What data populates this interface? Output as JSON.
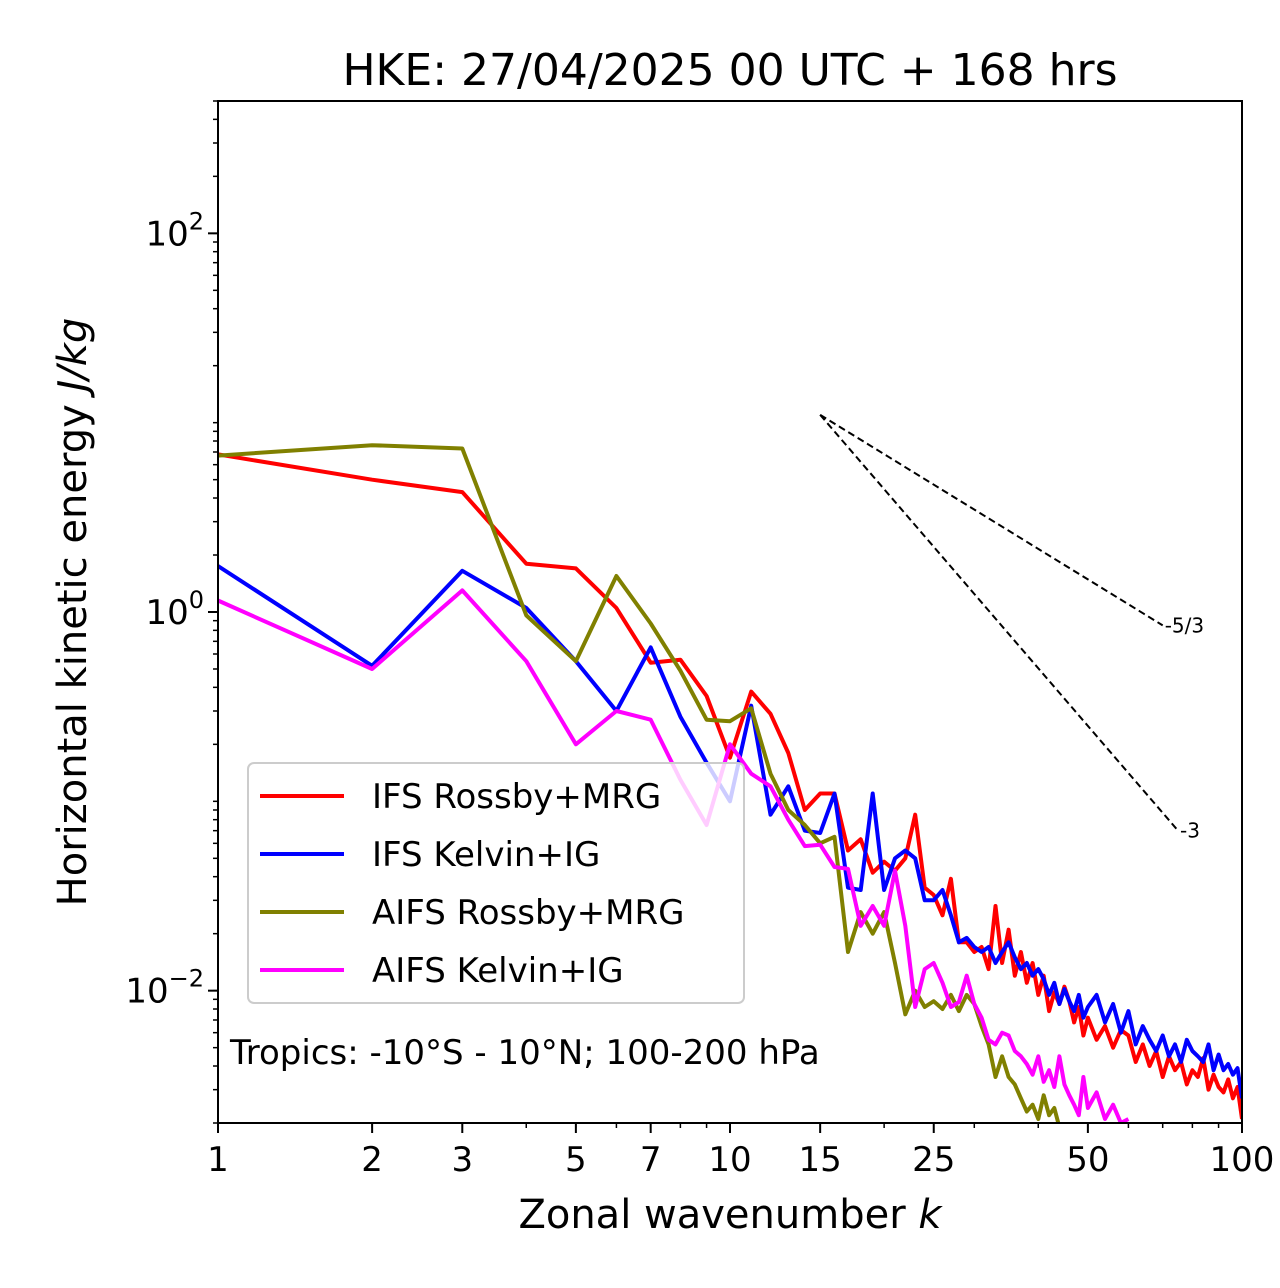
{
  "chart_data": {
    "type": "line",
    "title": "HKE: 27/04/2025 00 UTC + 168 hrs",
    "xlabel": "Zonal wavenumber",
    "xlabel_var": "k",
    "ylabel": "Horizontal kinetic energy",
    "ylabel_unit": "J/kg",
    "xscale": "log",
    "yscale": "log",
    "xlim": [
      1,
      100
    ],
    "ylim": [
      0.002,
      500
    ],
    "x_ticks": [
      1,
      2,
      3,
      5,
      7,
      10,
      15,
      25,
      50,
      100
    ],
    "x_tick_labels": [
      "1",
      "2",
      "3",
      "5",
      "7",
      "10",
      "15",
      "25",
      "50",
      "100"
    ],
    "y_ticks": [
      0.01,
      1,
      100
    ],
    "y_tick_labels": [
      {
        "base": "10",
        "exp": "−2"
      },
      {
        "base": "10",
        "exp": "0"
      },
      {
        "base": "10",
        "exp": "2"
      }
    ],
    "legend_position": "lower-left",
    "annotation": "Tropics: -10°S - 10°N; 100-200 hPa",
    "reference_lines": [
      {
        "label": "-5/3",
        "x": [
          15,
          70
        ],
        "y": [
          11,
          0.85
        ]
      },
      {
        "label": "-3",
        "x": [
          15,
          75
        ],
        "y": [
          11,
          0.07
        ]
      }
    ],
    "series": [
      {
        "name": "IFS Rossby+MRG",
        "color": "#ff0000",
        "x": [
          1,
          2,
          3,
          4,
          5,
          6,
          7,
          8,
          9,
          10,
          11,
          12,
          13,
          14,
          15,
          16,
          17,
          18,
          19,
          20,
          21,
          22,
          23,
          24,
          25,
          26,
          27,
          28,
          29,
          30,
          31,
          32,
          33,
          34,
          35,
          36,
          37,
          38,
          39,
          40,
          41,
          42,
          43,
          44,
          45,
          46,
          47,
          48,
          49,
          50,
          52,
          54,
          56,
          58,
          60,
          62,
          64,
          66,
          68,
          70,
          72,
          74,
          76,
          78,
          80,
          82,
          84,
          86,
          88,
          90,
          92,
          94,
          96,
          98,
          100
        ],
        "y": [
          6.8,
          5.0,
          4.3,
          1.8,
          1.7,
          1.05,
          0.54,
          0.56,
          0.36,
          0.17,
          0.38,
          0.29,
          0.18,
          0.09,
          0.11,
          0.11,
          0.055,
          0.063,
          0.042,
          0.048,
          0.043,
          0.05,
          0.085,
          0.035,
          0.032,
          0.025,
          0.039,
          0.018,
          0.018,
          0.016,
          0.017,
          0.013,
          0.028,
          0.014,
          0.021,
          0.012,
          0.016,
          0.011,
          0.014,
          0.0095,
          0.012,
          0.0078,
          0.0098,
          0.0085,
          0.0105,
          0.0088,
          0.0068,
          0.0082,
          0.0058,
          0.0072,
          0.0055,
          0.0065,
          0.005,
          0.0062,
          0.0058,
          0.0042,
          0.0052,
          0.004,
          0.0048,
          0.0035,
          0.0045,
          0.0038,
          0.0042,
          0.0032,
          0.0038,
          0.0035,
          0.0044,
          0.003,
          0.0036,
          0.0031,
          0.0029,
          0.0034,
          0.0027,
          0.0031,
          0.0021
        ]
      },
      {
        "name": "IFS Kelvin+IG",
        "color": "#0000ff",
        "x": [
          1,
          2,
          3,
          4,
          5,
          6,
          7,
          8,
          9,
          10,
          11,
          12,
          13,
          14,
          15,
          16,
          17,
          18,
          19,
          20,
          21,
          22,
          23,
          24,
          25,
          26,
          27,
          28,
          29,
          30,
          31,
          32,
          33,
          34,
          35,
          36,
          37,
          38,
          39,
          40,
          41,
          42,
          43,
          44,
          45,
          46,
          47,
          48,
          49,
          50,
          52,
          54,
          56,
          58,
          60,
          62,
          64,
          66,
          68,
          70,
          72,
          74,
          76,
          78,
          80,
          82,
          84,
          86,
          88,
          90,
          92,
          94,
          96,
          98,
          100
        ],
        "y": [
          1.75,
          0.52,
          1.65,
          1.05,
          0.55,
          0.3,
          0.65,
          0.28,
          0.16,
          0.1,
          0.32,
          0.085,
          0.12,
          0.07,
          0.068,
          0.11,
          0.035,
          0.034,
          0.11,
          0.034,
          0.05,
          0.055,
          0.05,
          0.03,
          0.03,
          0.034,
          0.025,
          0.018,
          0.019,
          0.017,
          0.016,
          0.017,
          0.014,
          0.016,
          0.018,
          0.015,
          0.013,
          0.014,
          0.012,
          0.013,
          0.0115,
          0.0095,
          0.011,
          0.0085,
          0.0102,
          0.0088,
          0.0078,
          0.0095,
          0.0072,
          0.0082,
          0.0095,
          0.0068,
          0.0085,
          0.006,
          0.0078,
          0.0052,
          0.0065,
          0.0055,
          0.0048,
          0.0058,
          0.0045,
          0.0052,
          0.0042,
          0.0055,
          0.0048,
          0.0045,
          0.0042,
          0.0052,
          0.0038,
          0.0046,
          0.0038,
          0.0041,
          0.0036,
          0.0039,
          0.0027
        ]
      },
      {
        "name": "AIFS Rossby+MRG",
        "color": "#808000",
        "x": [
          1,
          2,
          3,
          4,
          5,
          6,
          7,
          8,
          9,
          10,
          11,
          12,
          13,
          14,
          15,
          16,
          17,
          18,
          19,
          20,
          21,
          22,
          23,
          24,
          25,
          26,
          27,
          28,
          29,
          30,
          31,
          32,
          33,
          34,
          35,
          36,
          37,
          38,
          39,
          40,
          41,
          42,
          43,
          44
        ],
        "y": [
          6.7,
          7.6,
          7.3,
          0.96,
          0.55,
          1.55,
          0.87,
          0.49,
          0.27,
          0.265,
          0.31,
          0.14,
          0.09,
          0.075,
          0.06,
          0.065,
          0.016,
          0.026,
          0.02,
          0.026,
          0.014,
          0.0075,
          0.01,
          0.0082,
          0.0088,
          0.008,
          0.0095,
          0.0078,
          0.0095,
          0.0085,
          0.0065,
          0.0052,
          0.0035,
          0.0045,
          0.0035,
          0.0032,
          0.0027,
          0.0023,
          0.0025,
          0.0021,
          0.0028,
          0.0022,
          0.0024,
          0.0019
        ]
      },
      {
        "name": "AIFS Kelvin+IG",
        "color": "#ff00ff",
        "x": [
          1,
          2,
          3,
          4,
          5,
          6,
          7,
          8,
          9,
          10,
          11,
          12,
          13,
          14,
          15,
          16,
          17,
          18,
          19,
          20,
          21,
          22,
          23,
          24,
          25,
          26,
          27,
          28,
          29,
          30,
          31,
          32,
          33,
          34,
          35,
          36,
          37,
          38,
          39,
          40,
          41,
          42,
          43,
          44,
          45,
          46,
          47,
          48,
          49,
          50,
          52,
          54,
          56,
          58,
          60
        ],
        "y": [
          1.15,
          0.5,
          1.3,
          0.55,
          0.2,
          0.3,
          0.27,
          0.13,
          0.075,
          0.2,
          0.14,
          0.12,
          0.08,
          0.058,
          0.059,
          0.045,
          0.044,
          0.022,
          0.028,
          0.022,
          0.043,
          0.022,
          0.0082,
          0.013,
          0.014,
          0.011,
          0.0082,
          0.0087,
          0.012,
          0.0085,
          0.0072,
          0.0055,
          0.0052,
          0.006,
          0.0058,
          0.0048,
          0.0045,
          0.0041,
          0.0036,
          0.0045,
          0.0033,
          0.0038,
          0.0031,
          0.0045,
          0.0032,
          0.0028,
          0.0025,
          0.0022,
          0.0035,
          0.0024,
          0.0029,
          0.0021,
          0.0025,
          0.002,
          0.0021
        ]
      }
    ]
  }
}
